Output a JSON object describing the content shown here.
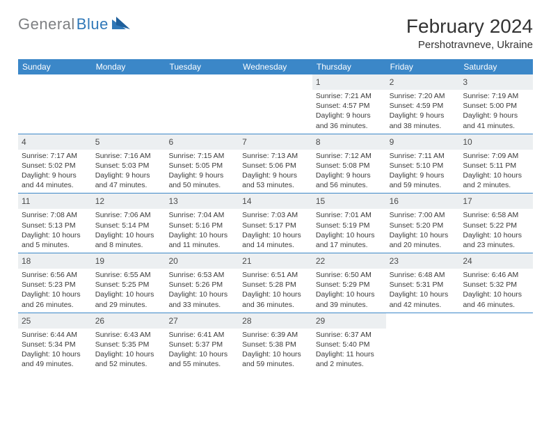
{
  "brand": {
    "text1": "General",
    "text2": "Blue"
  },
  "title": "February 2024",
  "location": "Pershotravneve, Ukraine",
  "colors": {
    "accent": "#3b87c8",
    "row_bg": "#eceff1",
    "text": "#3a3a3a",
    "brand_gray": "#7d7f82",
    "brand_blue": "#3078b8"
  },
  "day_headers": [
    "Sunday",
    "Monday",
    "Tuesday",
    "Wednesday",
    "Thursday",
    "Friday",
    "Saturday"
  ],
  "weeks": [
    [
      null,
      null,
      null,
      null,
      {
        "n": "1",
        "sr": "Sunrise: 7:21 AM",
        "ss": "Sunset: 4:57 PM",
        "d1": "Daylight: 9 hours",
        "d2": "and 36 minutes."
      },
      {
        "n": "2",
        "sr": "Sunrise: 7:20 AM",
        "ss": "Sunset: 4:59 PM",
        "d1": "Daylight: 9 hours",
        "d2": "and 38 minutes."
      },
      {
        "n": "3",
        "sr": "Sunrise: 7:19 AM",
        "ss": "Sunset: 5:00 PM",
        "d1": "Daylight: 9 hours",
        "d2": "and 41 minutes."
      }
    ],
    [
      {
        "n": "4",
        "sr": "Sunrise: 7:17 AM",
        "ss": "Sunset: 5:02 PM",
        "d1": "Daylight: 9 hours",
        "d2": "and 44 minutes."
      },
      {
        "n": "5",
        "sr": "Sunrise: 7:16 AM",
        "ss": "Sunset: 5:03 PM",
        "d1": "Daylight: 9 hours",
        "d2": "and 47 minutes."
      },
      {
        "n": "6",
        "sr": "Sunrise: 7:15 AM",
        "ss": "Sunset: 5:05 PM",
        "d1": "Daylight: 9 hours",
        "d2": "and 50 minutes."
      },
      {
        "n": "7",
        "sr": "Sunrise: 7:13 AM",
        "ss": "Sunset: 5:06 PM",
        "d1": "Daylight: 9 hours",
        "d2": "and 53 minutes."
      },
      {
        "n": "8",
        "sr": "Sunrise: 7:12 AM",
        "ss": "Sunset: 5:08 PM",
        "d1": "Daylight: 9 hours",
        "d2": "and 56 minutes."
      },
      {
        "n": "9",
        "sr": "Sunrise: 7:11 AM",
        "ss": "Sunset: 5:10 PM",
        "d1": "Daylight: 9 hours",
        "d2": "and 59 minutes."
      },
      {
        "n": "10",
        "sr": "Sunrise: 7:09 AM",
        "ss": "Sunset: 5:11 PM",
        "d1": "Daylight: 10 hours",
        "d2": "and 2 minutes."
      }
    ],
    [
      {
        "n": "11",
        "sr": "Sunrise: 7:08 AM",
        "ss": "Sunset: 5:13 PM",
        "d1": "Daylight: 10 hours",
        "d2": "and 5 minutes."
      },
      {
        "n": "12",
        "sr": "Sunrise: 7:06 AM",
        "ss": "Sunset: 5:14 PM",
        "d1": "Daylight: 10 hours",
        "d2": "and 8 minutes."
      },
      {
        "n": "13",
        "sr": "Sunrise: 7:04 AM",
        "ss": "Sunset: 5:16 PM",
        "d1": "Daylight: 10 hours",
        "d2": "and 11 minutes."
      },
      {
        "n": "14",
        "sr": "Sunrise: 7:03 AM",
        "ss": "Sunset: 5:17 PM",
        "d1": "Daylight: 10 hours",
        "d2": "and 14 minutes."
      },
      {
        "n": "15",
        "sr": "Sunrise: 7:01 AM",
        "ss": "Sunset: 5:19 PM",
        "d1": "Daylight: 10 hours",
        "d2": "and 17 minutes."
      },
      {
        "n": "16",
        "sr": "Sunrise: 7:00 AM",
        "ss": "Sunset: 5:20 PM",
        "d1": "Daylight: 10 hours",
        "d2": "and 20 minutes."
      },
      {
        "n": "17",
        "sr": "Sunrise: 6:58 AM",
        "ss": "Sunset: 5:22 PM",
        "d1": "Daylight: 10 hours",
        "d2": "and 23 minutes."
      }
    ],
    [
      {
        "n": "18",
        "sr": "Sunrise: 6:56 AM",
        "ss": "Sunset: 5:23 PM",
        "d1": "Daylight: 10 hours",
        "d2": "and 26 minutes."
      },
      {
        "n": "19",
        "sr": "Sunrise: 6:55 AM",
        "ss": "Sunset: 5:25 PM",
        "d1": "Daylight: 10 hours",
        "d2": "and 29 minutes."
      },
      {
        "n": "20",
        "sr": "Sunrise: 6:53 AM",
        "ss": "Sunset: 5:26 PM",
        "d1": "Daylight: 10 hours",
        "d2": "and 33 minutes."
      },
      {
        "n": "21",
        "sr": "Sunrise: 6:51 AM",
        "ss": "Sunset: 5:28 PM",
        "d1": "Daylight: 10 hours",
        "d2": "and 36 minutes."
      },
      {
        "n": "22",
        "sr": "Sunrise: 6:50 AM",
        "ss": "Sunset: 5:29 PM",
        "d1": "Daylight: 10 hours",
        "d2": "and 39 minutes."
      },
      {
        "n": "23",
        "sr": "Sunrise: 6:48 AM",
        "ss": "Sunset: 5:31 PM",
        "d1": "Daylight: 10 hours",
        "d2": "and 42 minutes."
      },
      {
        "n": "24",
        "sr": "Sunrise: 6:46 AM",
        "ss": "Sunset: 5:32 PM",
        "d1": "Daylight: 10 hours",
        "d2": "and 46 minutes."
      }
    ],
    [
      {
        "n": "25",
        "sr": "Sunrise: 6:44 AM",
        "ss": "Sunset: 5:34 PM",
        "d1": "Daylight: 10 hours",
        "d2": "and 49 minutes."
      },
      {
        "n": "26",
        "sr": "Sunrise: 6:43 AM",
        "ss": "Sunset: 5:35 PM",
        "d1": "Daylight: 10 hours",
        "d2": "and 52 minutes."
      },
      {
        "n": "27",
        "sr": "Sunrise: 6:41 AM",
        "ss": "Sunset: 5:37 PM",
        "d1": "Daylight: 10 hours",
        "d2": "and 55 minutes."
      },
      {
        "n": "28",
        "sr": "Sunrise: 6:39 AM",
        "ss": "Sunset: 5:38 PM",
        "d1": "Daylight: 10 hours",
        "d2": "and 59 minutes."
      },
      {
        "n": "29",
        "sr": "Sunrise: 6:37 AM",
        "ss": "Sunset: 5:40 PM",
        "d1": "Daylight: 11 hours",
        "d2": "and 2 minutes."
      },
      null,
      null
    ]
  ]
}
